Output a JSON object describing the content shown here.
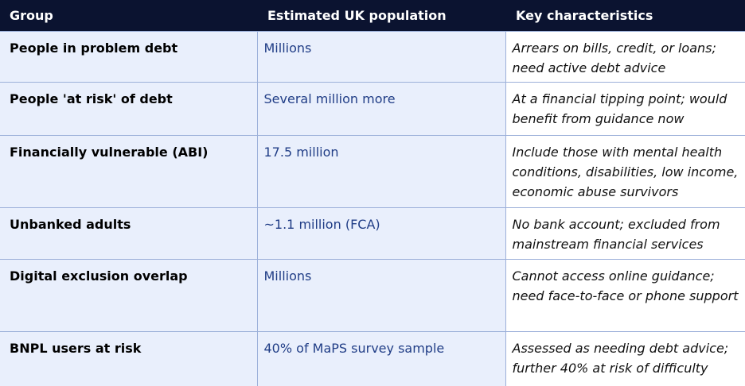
{
  "table": {
    "headers": [
      "Group",
      "Estimated UK population",
      "Key characteristics"
    ],
    "rows": [
      {
        "group": "People in problem debt",
        "population": "Millions",
        "characteristics": "Arrears on bills, credit, or loans; need active debt advice"
      },
      {
        "group": "People 'at risk' of debt",
        "population": "Several million more",
        "characteristics": "At a financial tipping point; would benefit from guidance now"
      },
      {
        "group": "Financially vulnerable (ABI)",
        "population": "17.5 million",
        "characteristics": "Include those with mental health conditions, disabilities, low income, economic abuse survivors"
      },
      {
        "group": "Unbanked adults",
        "population": "~1.1 million (FCA)",
        "characteristics": "No bank account; excluded from mainstream financial services"
      },
      {
        "group": "Digital exclusion overlap",
        "population": "Millions",
        "characteristics": "Cannot access online guidance; need face-to-face or phone support"
      },
      {
        "group": "BNPL users at risk",
        "population": "40% of MaPS survey sample",
        "characteristics": "Assessed as needing debt advice; further 40% at risk of difficulty"
      }
    ]
  }
}
